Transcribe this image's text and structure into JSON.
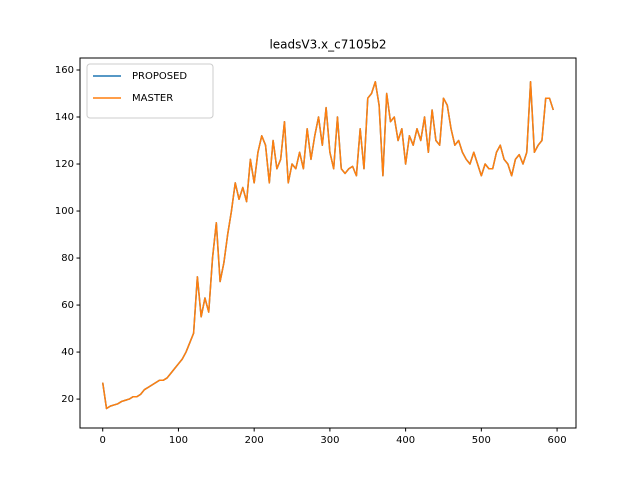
{
  "chart_data": {
    "type": "line",
    "title": "leadsV3.x_c7105b2",
    "x": [
      0,
      5,
      10,
      15,
      20,
      25,
      30,
      35,
      40,
      45,
      50,
      55,
      60,
      65,
      70,
      75,
      80,
      85,
      90,
      95,
      100,
      105,
      110,
      115,
      120,
      125,
      130,
      135,
      140,
      145,
      150,
      155,
      160,
      165,
      170,
      175,
      180,
      185,
      190,
      195,
      200,
      205,
      210,
      215,
      220,
      225,
      230,
      235,
      240,
      245,
      250,
      255,
      260,
      265,
      270,
      275,
      280,
      285,
      290,
      295,
      300,
      305,
      310,
      315,
      320,
      325,
      330,
      335,
      340,
      345,
      350,
      355,
      360,
      365,
      370,
      375,
      380,
      385,
      390,
      395,
      400,
      405,
      410,
      415,
      420,
      425,
      430,
      435,
      440,
      445,
      450,
      455,
      460,
      465,
      470,
      475,
      480,
      485,
      490,
      495,
      500,
      505,
      510,
      515,
      520,
      525,
      530,
      535,
      540,
      545,
      550,
      555,
      560,
      565,
      570,
      575,
      580,
      585,
      590,
      595
    ],
    "series": [
      {
        "name": "PROPOSED",
        "color": "#1f77b4",
        "values": [
          27,
          16,
          17,
          17.5,
          18,
          19,
          19.5,
          20,
          21,
          21,
          22,
          24,
          25,
          26,
          27,
          28,
          28,
          29,
          31,
          33,
          35,
          37,
          40,
          44,
          48,
          72,
          55,
          63,
          57,
          80,
          95,
          70,
          78,
          90,
          100,
          112,
          105,
          110,
          104,
          122,
          112,
          125,
          132,
          128,
          112,
          130,
          118,
          122,
          138,
          112,
          120,
          118,
          125,
          118,
          135,
          122,
          132,
          140,
          128,
          144,
          125,
          118,
          140,
          118,
          116,
          118,
          119,
          115,
          135,
          118,
          148,
          150,
          155,
          145,
          115,
          150,
          138,
          140,
          130,
          135,
          120,
          132,
          128,
          135,
          130,
          140,
          125,
          143,
          130,
          128,
          148,
          145,
          135,
          128,
          130,
          125,
          122,
          120,
          125,
          120,
          115,
          120,
          118,
          118,
          125,
          128,
          122,
          120,
          115,
          122,
          124,
          120,
          125,
          155,
          125,
          128,
          130,
          148,
          148,
          143
        ]
      },
      {
        "name": "MASTER",
        "color": "#ff7f0e",
        "values": [
          27,
          16,
          17,
          17.5,
          18,
          19,
          19.5,
          20,
          21,
          21,
          22,
          24,
          25,
          26,
          27,
          28,
          28,
          29,
          31,
          33,
          35,
          37,
          40,
          44,
          48,
          72,
          55,
          63,
          57,
          80,
          95,
          70,
          78,
          90,
          100,
          112,
          105,
          110,
          104,
          122,
          112,
          125,
          132,
          128,
          112,
          130,
          118,
          122,
          138,
          112,
          120,
          118,
          125,
          118,
          135,
          122,
          132,
          140,
          128,
          144,
          125,
          118,
          140,
          118,
          116,
          118,
          119,
          115,
          135,
          118,
          148,
          150,
          155,
          145,
          115,
          150,
          138,
          140,
          130,
          135,
          120,
          132,
          128,
          135,
          130,
          140,
          125,
          143,
          130,
          128,
          148,
          145,
          135,
          128,
          130,
          125,
          122,
          120,
          125,
          120,
          115,
          120,
          118,
          118,
          125,
          128,
          122,
          120,
          115,
          122,
          124,
          120,
          125,
          155,
          125,
          128,
          130,
          148,
          148,
          143
        ]
      }
    ],
    "xlim": [
      -30,
      625
    ],
    "ylim": [
      7.7,
      165.1
    ],
    "xticks": [
      0,
      100,
      200,
      300,
      400,
      500,
      600
    ],
    "yticks": [
      20,
      40,
      60,
      80,
      100,
      120,
      140,
      160
    ],
    "grid": false,
    "legend": "upper left"
  }
}
